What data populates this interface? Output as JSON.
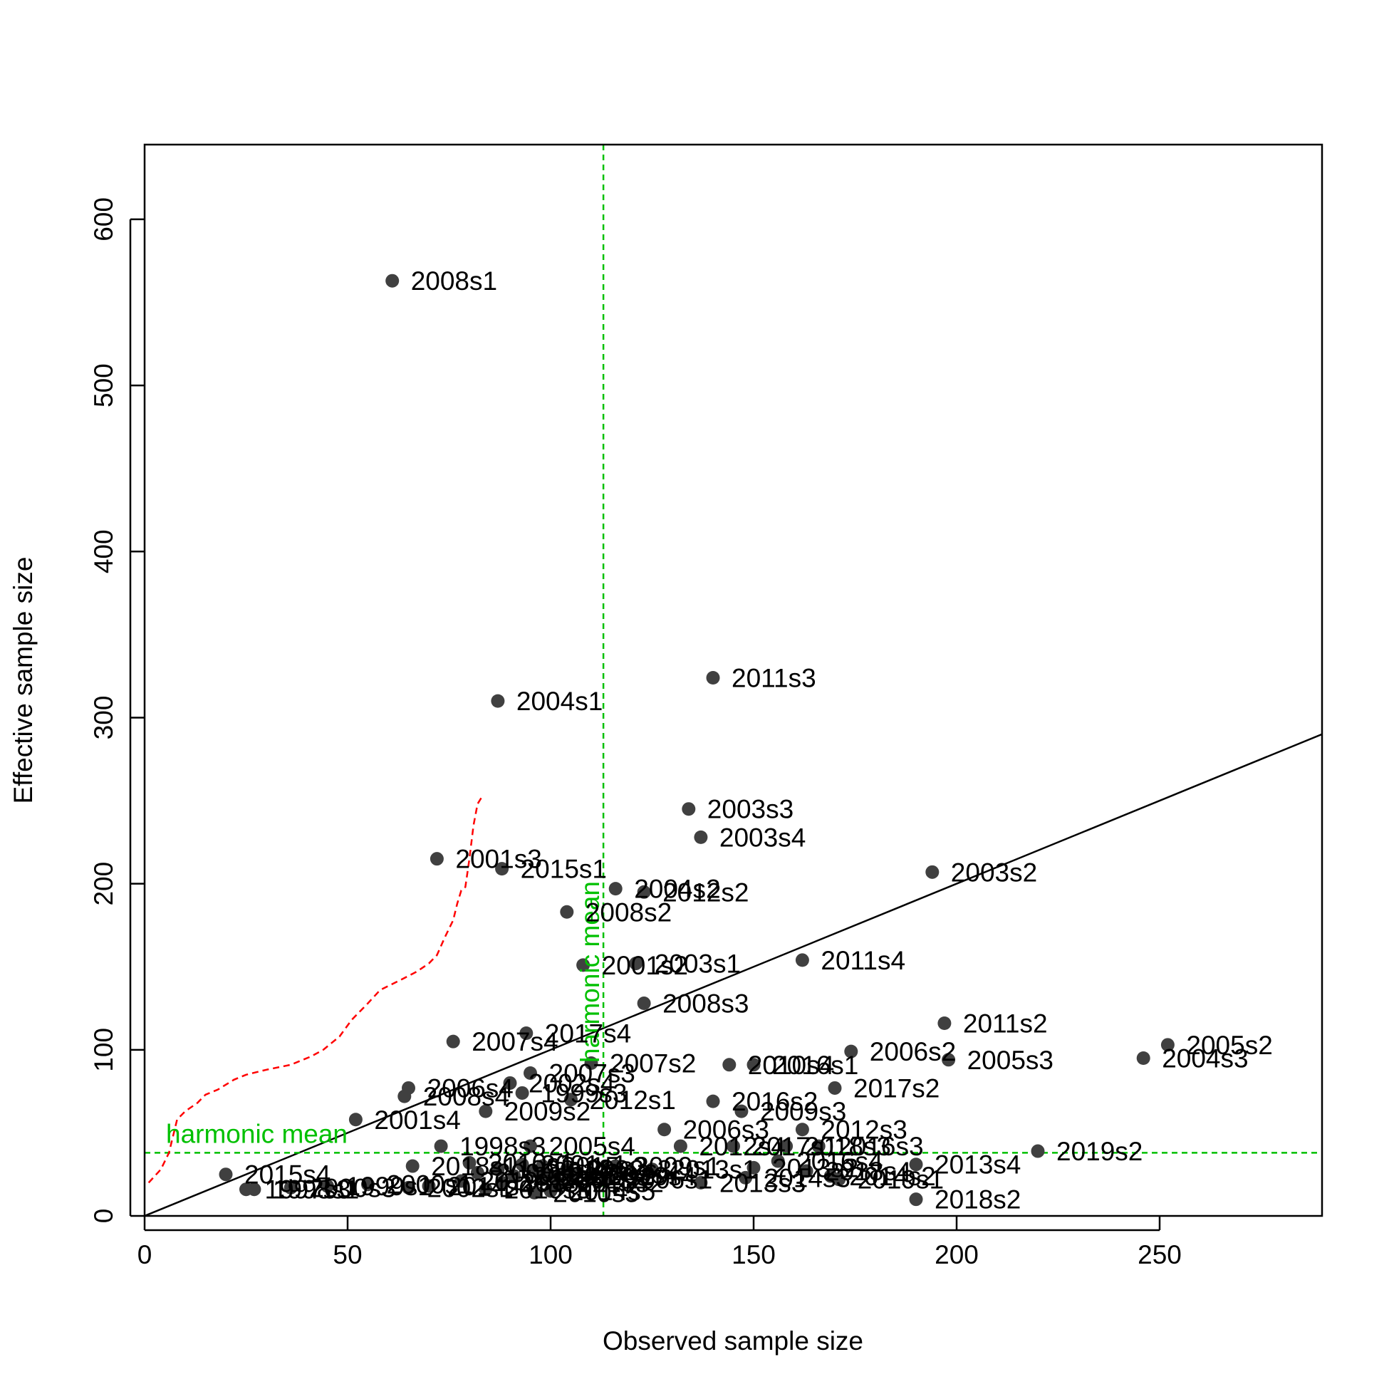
{
  "chart_data": {
    "type": "scatter",
    "title": "",
    "xlabel": "Observed sample size",
    "ylabel": "Effective sample size",
    "xlim": [
      0,
      290
    ],
    "ylim": [
      0,
      645
    ],
    "xticks": [
      0,
      50,
      100,
      150,
      200,
      250
    ],
    "yticks": [
      0,
      100,
      200,
      300,
      400,
      500,
      600
    ],
    "grid": false,
    "point_color": "#404040",
    "identity_line_color": "#000000",
    "reference_color": "#00c000",
    "quantile_curve_color": "#ff0000",
    "harmonic_mean": {
      "label": "harmonic mean",
      "x": 113,
      "y": 38
    },
    "quantile_curve": [
      {
        "x": 1,
        "y": 20
      },
      {
        "x": 4,
        "y": 28
      },
      {
        "x": 6,
        "y": 38
      },
      {
        "x": 7,
        "y": 48
      },
      {
        "x": 8,
        "y": 58
      },
      {
        "x": 10,
        "y": 63
      },
      {
        "x": 13,
        "y": 68
      },
      {
        "x": 15,
        "y": 73
      },
      {
        "x": 18,
        "y": 76
      },
      {
        "x": 22,
        "y": 82
      },
      {
        "x": 25,
        "y": 85
      },
      {
        "x": 30,
        "y": 88
      },
      {
        "x": 36,
        "y": 91
      },
      {
        "x": 41,
        "y": 96
      },
      {
        "x": 44,
        "y": 100
      },
      {
        "x": 48,
        "y": 108
      },
      {
        "x": 51,
        "y": 118
      },
      {
        "x": 55,
        "y": 128
      },
      {
        "x": 58,
        "y": 136
      },
      {
        "x": 63,
        "y": 142
      },
      {
        "x": 67,
        "y": 147
      },
      {
        "x": 70,
        "y": 152
      },
      {
        "x": 72,
        "y": 157
      },
      {
        "x": 74,
        "y": 168
      },
      {
        "x": 76,
        "y": 178
      },
      {
        "x": 77,
        "y": 188
      },
      {
        "x": 78,
        "y": 196
      },
      {
        "x": 79,
        "y": 198
      },
      {
        "x": 80,
        "y": 215
      },
      {
        "x": 81,
        "y": 235
      },
      {
        "x": 82,
        "y": 248
      },
      {
        "x": 83,
        "y": 252
      }
    ],
    "points": [
      {
        "label": "2008s1",
        "x": 61,
        "y": 563
      },
      {
        "label": "2011s3",
        "x": 140,
        "y": 324
      },
      {
        "label": "2004s1",
        "x": 87,
        "y": 310
      },
      {
        "label": "2003s3",
        "x": 134,
        "y": 245
      },
      {
        "label": "2003s4",
        "x": 137,
        "y": 228
      },
      {
        "label": "2001s3",
        "x": 72,
        "y": 215
      },
      {
        "label": "2015s1",
        "x": 88,
        "y": 209
      },
      {
        "label": "2003s2",
        "x": 194,
        "y": 207
      },
      {
        "label": "2004s2",
        "x": 116,
        "y": 197
      },
      {
        "label": "2012s2",
        "x": 123,
        "y": 195
      },
      {
        "label": "2008s2",
        "x": 104,
        "y": 183
      },
      {
        "label": "2001s2",
        "x": 108,
        "y": 151
      },
      {
        "label": "2003s1",
        "x": 121,
        "y": 152
      },
      {
        "label": "2011s4",
        "x": 162,
        "y": 154
      },
      {
        "label": "2008s3",
        "x": 123,
        "y": 128
      },
      {
        "label": "2011s2",
        "x": 197,
        "y": 116
      },
      {
        "label": "2017s4",
        "x": 94,
        "y": 110
      },
      {
        "label": "2007s4",
        "x": 76,
        "y": 105
      },
      {
        "label": "2005s2",
        "x": 252,
        "y": 103
      },
      {
        "label": "2006s2",
        "x": 174,
        "y": 99
      },
      {
        "label": "2004s3",
        "x": 246,
        "y": 95
      },
      {
        "label": "2005s3",
        "x": 198,
        "y": 94
      },
      {
        "label": "2007s2",
        "x": 110,
        "y": 92
      },
      {
        "label": "2010s4",
        "x": 144,
        "y": 91
      },
      {
        "label": "2016s1",
        "x": 150,
        "y": 91
      },
      {
        "label": "2007s3",
        "x": 95,
        "y": 86
      },
      {
        "label": "2002s4",
        "x": 90,
        "y": 80
      },
      {
        "label": "2017s2",
        "x": 170,
        "y": 77
      },
      {
        "label": "2006s4",
        "x": 65,
        "y": 77
      },
      {
        "label": "2008s4",
        "x": 64,
        "y": 72
      },
      {
        "label": "1999s3",
        "x": 93,
        "y": 74
      },
      {
        "label": "2012s1",
        "x": 105,
        "y": 70
      },
      {
        "label": "2016s2",
        "x": 140,
        "y": 69
      },
      {
        "label": "2009s2",
        "x": 84,
        "y": 63
      },
      {
        "label": "2009s3",
        "x": 147,
        "y": 63
      },
      {
        "label": "2001s4",
        "x": 52,
        "y": 58
      },
      {
        "label": "2012s3",
        "x": 162,
        "y": 52
      },
      {
        "label": "2006s3",
        "x": 128,
        "y": 52
      },
      {
        "label": "1998s3",
        "x": 73,
        "y": 42
      },
      {
        "label": "2005s4",
        "x": 95,
        "y": 42
      },
      {
        "label": "2012s4",
        "x": 132,
        "y": 42
      },
      {
        "label": "2017s1",
        "x": 145,
        "y": 42
      },
      {
        "label": "2018s3",
        "x": 158,
        "y": 42
      },
      {
        "label": "2016s3",
        "x": 166,
        "y": 42
      },
      {
        "label": "2019s2",
        "x": 220,
        "y": 39
      },
      {
        "label": "2018s1",
        "x": 66,
        "y": 30
      },
      {
        "label": "2010s1",
        "x": 80,
        "y": 32
      },
      {
        "label": "2015s3",
        "x": 98,
        "y": 30
      },
      {
        "label": "2009s1",
        "x": 116,
        "y": 30
      },
      {
        "label": "2013s1",
        "x": 125,
        "y": 28
      },
      {
        "label": "2009s4",
        "x": 106,
        "y": 25
      },
      {
        "label": "2013s2",
        "x": 150,
        "y": 29
      },
      {
        "label": "2016s4",
        "x": 156,
        "y": 33
      },
      {
        "label": "2018s4",
        "x": 163,
        "y": 27
      },
      {
        "label": "2013s4",
        "x": 190,
        "y": 31
      },
      {
        "label": "2014s2",
        "x": 169,
        "y": 24
      },
      {
        "label": "2015s4",
        "x": 20,
        "y": 25
      },
      {
        "label": "2013s3",
        "x": 137,
        "y": 20
      },
      {
        "label": "2014s3",
        "x": 148,
        "y": 23
      },
      {
        "label": "2019s1",
        "x": 171,
        "y": 22
      },
      {
        "label": "2018s2",
        "x": 190,
        "y": 10
      },
      {
        "label": "1997s3",
        "x": 25,
        "y": 16
      },
      {
        "label": "1998s1",
        "x": 27,
        "y": 16
      },
      {
        "label": "2000s3",
        "x": 36,
        "y": 17
      },
      {
        "label": "1999s1",
        "x": 45,
        "y": 18
      },
      {
        "label": "2000s1",
        "x": 55,
        "y": 19
      },
      {
        "label": "2002s1",
        "x": 65,
        "y": 17
      },
      {
        "label": "2014s4",
        "x": 70,
        "y": 18
      },
      {
        "label": "2019s3",
        "x": 78,
        "y": 21
      },
      {
        "label": "2010s3",
        "x": 84,
        "y": 16
      },
      {
        "label": "2015s2",
        "x": 88,
        "y": 20
      },
      {
        "label": "2011s1",
        "x": 91,
        "y": 24
      },
      {
        "label": "2014s1",
        "x": 96,
        "y": 27
      },
      {
        "label": "2017s3",
        "x": 100,
        "y": 24
      },
      {
        "label": "2010s2",
        "x": 102,
        "y": 20
      },
      {
        "label": "2002s3",
        "x": 104,
        "y": 28
      },
      {
        "label": "2019s4",
        "x": 110,
        "y": 24
      },
      {
        "label": "2006s1",
        "x": 114,
        "y": 22
      },
      {
        "label": "2010s5",
        "x": 96,
        "y": 14
      },
      {
        "label": "2014s5",
        "x": 100,
        "y": 15
      },
      {
        "label": "2000s2",
        "x": 82,
        "y": 26
      },
      {
        "label": "1999s2",
        "x": 87,
        "y": 28
      },
      {
        "label": "2001s1",
        "x": 93,
        "y": 31
      },
      {
        "label": "2002s2",
        "x": 98,
        "y": 22
      }
    ]
  }
}
